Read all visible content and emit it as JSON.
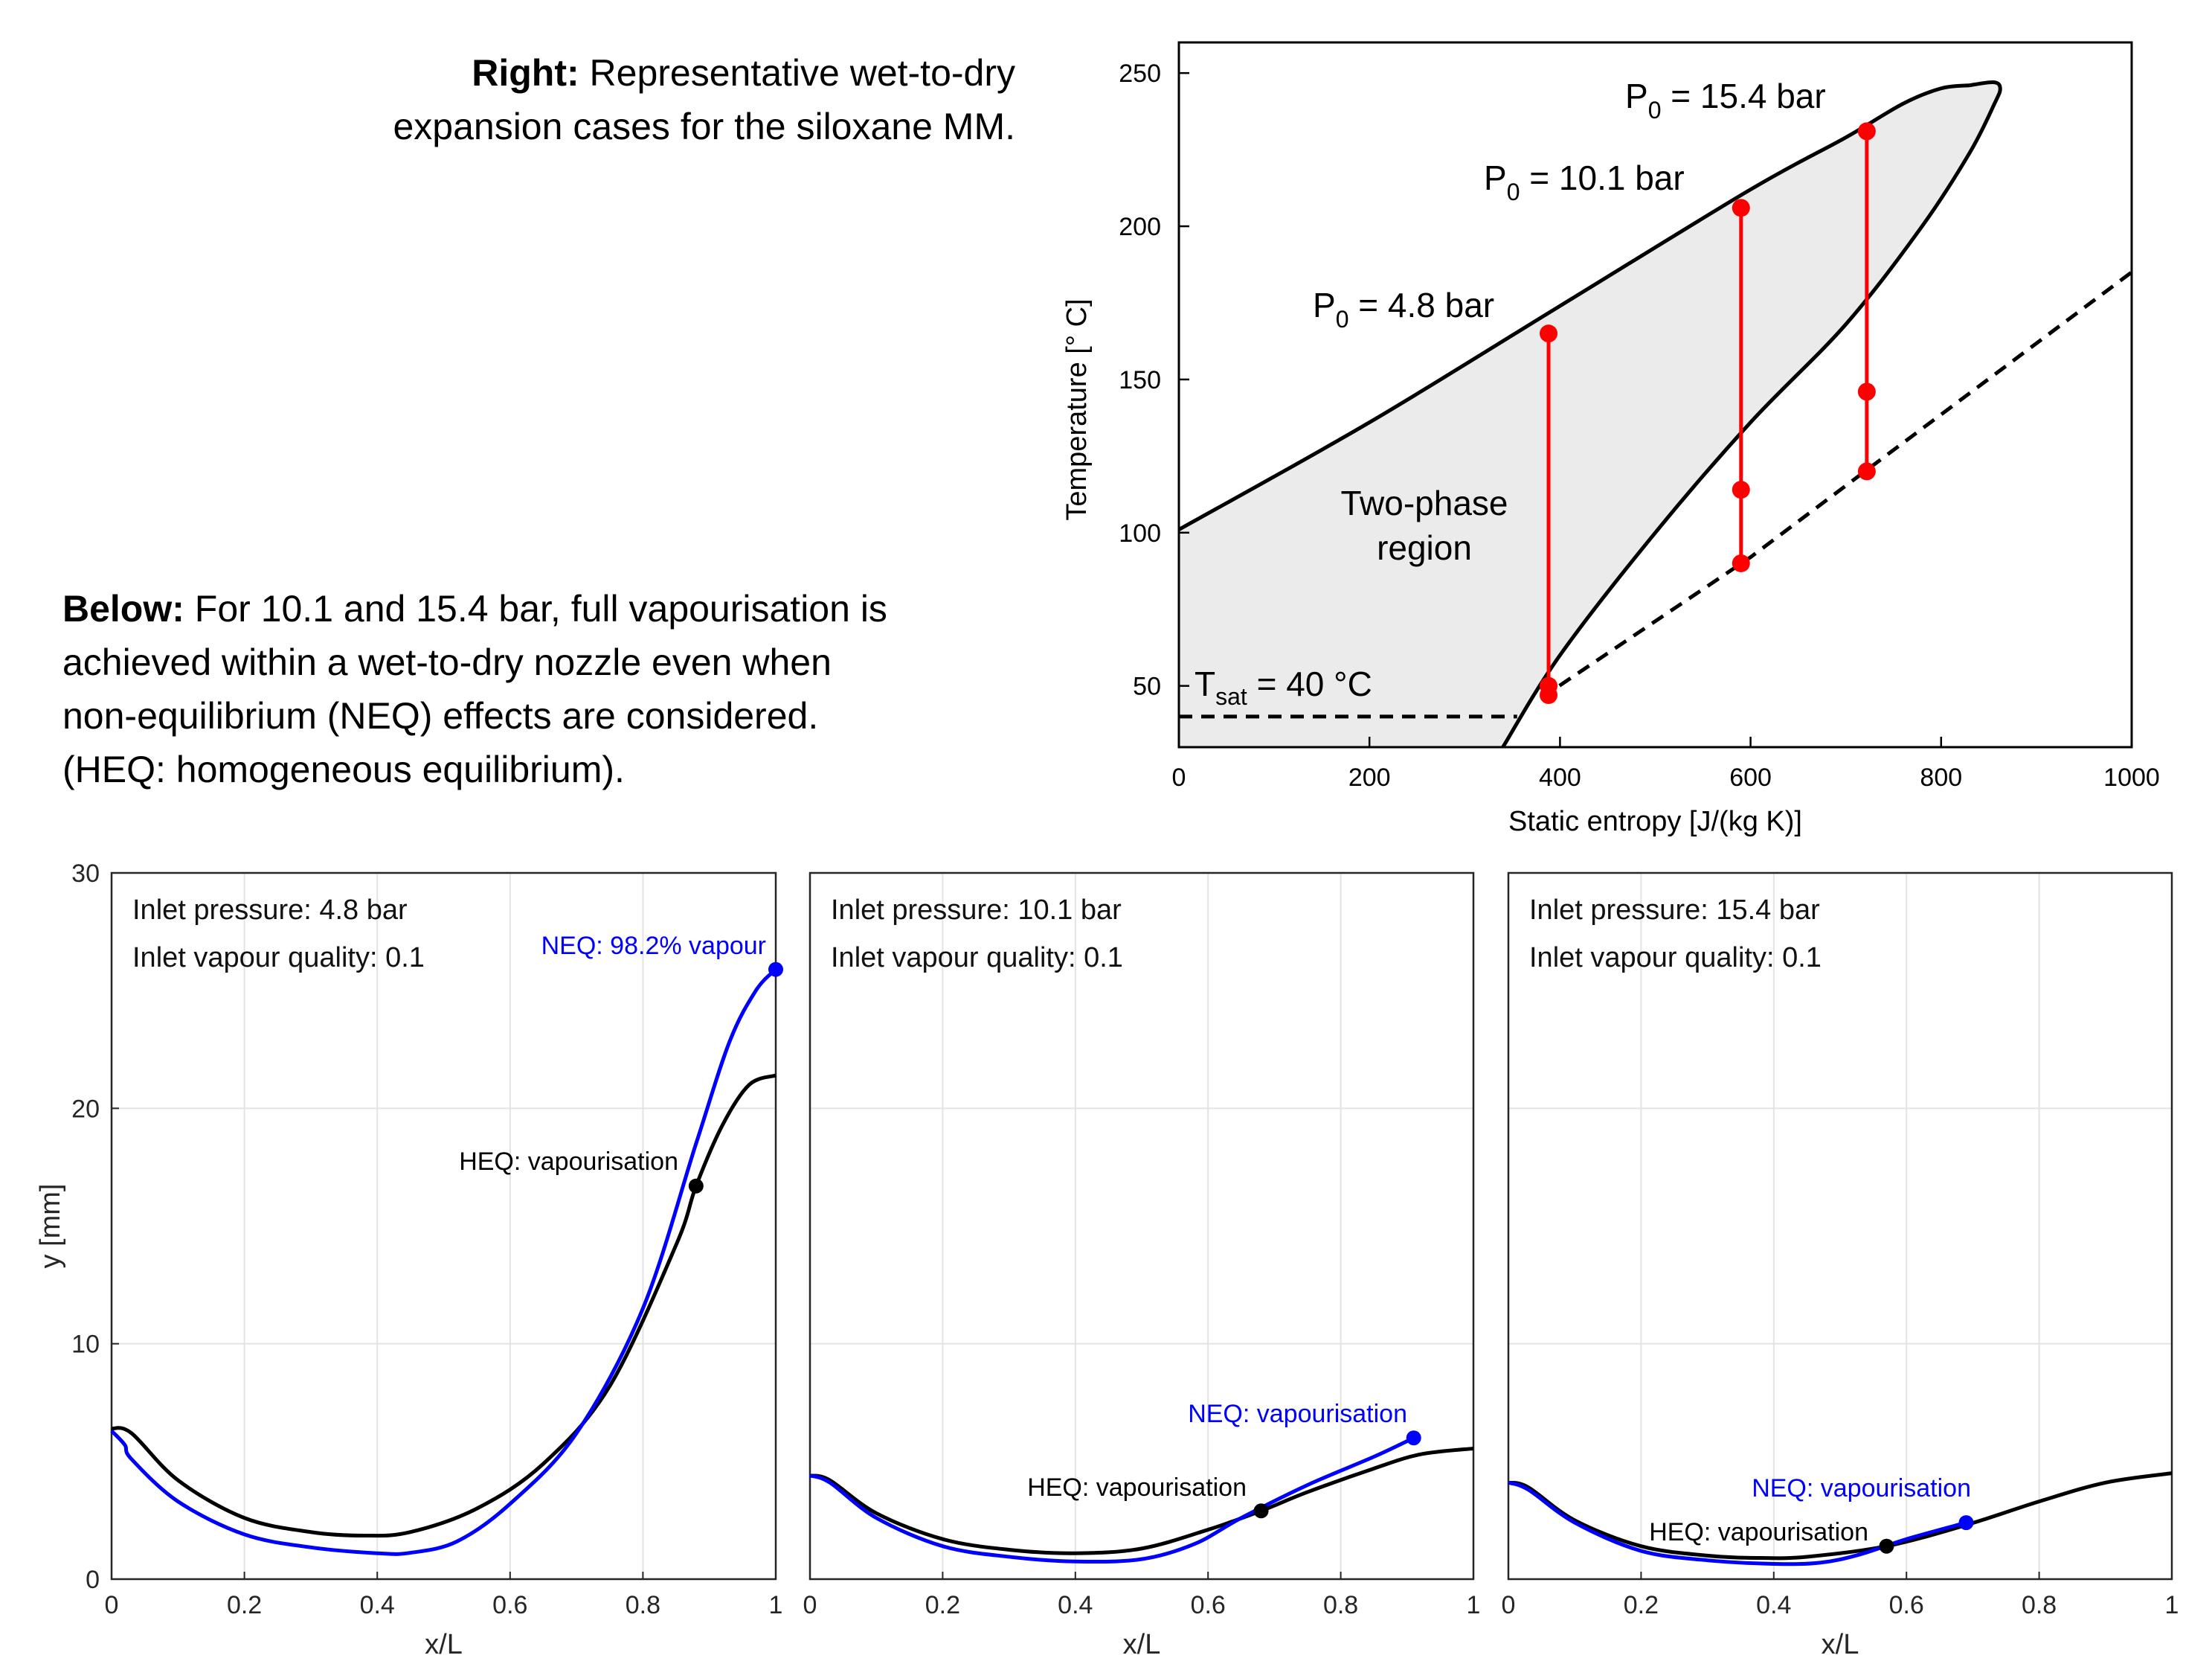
{
  "captions": {
    "right_bold": "Right:",
    "right_line1": " Representative wet-to-dry",
    "right_line2": "expansion cases for the siloxane MM.",
    "below_bold": "Below:",
    "below_line1": " For 10.1 and 15.4 bar, full vapourisation is",
    "below_line2": "achieved within a wet-to-dry nozzle even when",
    "below_line3": "non-equilibrium (NEQ) effects are considered.",
    "below_line4": "(HEQ: homogeneous equilibrium)."
  },
  "colors": {
    "red": "#ff0000",
    "blue": "#0000ff",
    "black": "#000000",
    "dome_fill": "#ebebeb",
    "grid": "#e3e3e3"
  },
  "chart_data": [
    {
      "id": "ts-diagram",
      "type": "line",
      "xlabel": "Static entropy [J/(kg K)]",
      "ylabel": "Temperature [° C]",
      "xlim": [
        0,
        1000
      ],
      "ylim": [
        30,
        260
      ],
      "xticks": [
        0,
        200,
        400,
        600,
        800,
        1000
      ],
      "yticks": [
        50,
        100,
        150,
        200,
        250
      ],
      "grid": false,
      "region_label": [
        "Two-phase",
        "region"
      ],
      "saturation_dome": {
        "liquid_line": [
          [
            0,
            101
          ],
          [
            200,
            136
          ],
          [
            400,
            174
          ],
          [
            600,
            212
          ],
          [
            700,
            229
          ],
          [
            760,
            240
          ],
          [
            800,
            245
          ],
          [
            830,
            246
          ]
        ],
        "vapour_line": [
          [
            340,
            30
          ],
          [
            400,
            60
          ],
          [
            500,
            100
          ],
          [
            600,
            136
          ],
          [
            700,
            168
          ],
          [
            780,
            200
          ],
          [
            830,
            224
          ],
          [
            856,
            240
          ],
          [
            862,
            245
          ],
          [
            855,
            247
          ],
          [
            830,
            246
          ]
        ]
      },
      "tsat_line": {
        "label_T": "T",
        "label_sub": "sat",
        "label_rest": " = 40 °C",
        "points": [
          [
            0,
            40
          ],
          [
            355,
            40
          ]
        ]
      },
      "dashed_line": {
        "points": [
          [
            380,
            46
          ],
          [
            600,
            92
          ],
          [
            720,
            120
          ],
          [
            1000,
            185
          ]
        ]
      },
      "cases": [
        {
          "label_P": "P",
          "label_sub": "0",
          "label_rest": " = 4.8 bar",
          "s": 388,
          "points": [
            165,
            50,
            47
          ]
        },
        {
          "label_P": "P",
          "label_sub": "0",
          "label_rest": " = 10.1 bar",
          "s": 590,
          "points": [
            206,
            114,
            90
          ]
        },
        {
          "label_P": "P",
          "label_sub": "0",
          "label_rest": " = 15.4 bar",
          "s": 722,
          "points": [
            231,
            146,
            120
          ]
        }
      ]
    },
    {
      "id": "nozzle-4.8",
      "type": "line",
      "xlabel": "x/L",
      "ylabel": "y [mm]",
      "xlim": [
        0,
        1
      ],
      "ylim": [
        0,
        30
      ],
      "xticks": [
        "0",
        "0.2",
        "0.4",
        "0.6",
        "0.8",
        "1"
      ],
      "yticks": [
        "0",
        "10",
        "20",
        "30"
      ],
      "grid": true,
      "annotation_line1": "Inlet pressure: 4.8 bar",
      "annotation_line2": "Inlet vapour quality: 0.1",
      "series": [
        {
          "name": "HEQ",
          "color": "#000000",
          "points": [
            [
              0,
              6.4
            ],
            [
              0.03,
              6.2
            ],
            [
              0.1,
              4.2
            ],
            [
              0.2,
              2.6
            ],
            [
              0.3,
              2.0
            ],
            [
              0.38,
              1.85
            ],
            [
              0.45,
              2.0
            ],
            [
              0.55,
              3.0
            ],
            [
              0.65,
              4.9
            ],
            [
              0.75,
              8.2
            ],
            [
              0.85,
              14.2
            ],
            [
              0.88,
              16.7
            ],
            [
              0.92,
              19.3
            ],
            [
              0.96,
              21.0
            ],
            [
              1.0,
              21.4
            ]
          ]
        },
        {
          "name": "NEQ",
          "color": "#0000ff",
          "points": [
            [
              0,
              6.3
            ],
            [
              0.02,
              5.7
            ],
            [
              0.03,
              5.1
            ],
            [
              0.1,
              3.3
            ],
            [
              0.2,
              1.9
            ],
            [
              0.3,
              1.35
            ],
            [
              0.4,
              1.1
            ],
            [
              0.45,
              1.12
            ],
            [
              0.52,
              1.6
            ],
            [
              0.6,
              3.2
            ],
            [
              0.7,
              6.2
            ],
            [
              0.8,
              11.5
            ],
            [
              0.88,
              18.5
            ],
            [
              0.93,
              22.8
            ],
            [
              0.97,
              25.0
            ],
            [
              1.0,
              25.9
            ]
          ]
        }
      ],
      "markers": [
        {
          "series": "HEQ",
          "x": 0.88,
          "y": 16.7,
          "color": "#000000",
          "label": "HEQ: vapourisation"
        },
        {
          "series": "NEQ",
          "x": 1.0,
          "y": 25.9,
          "color": "#0000ff",
          "label": "NEQ: 98.2% vapour"
        }
      ]
    },
    {
      "id": "nozzle-10.1",
      "type": "line",
      "xlabel": "x/L",
      "xlim": [
        0,
        1
      ],
      "ylim": [
        0,
        30
      ],
      "xticks": [
        "0",
        "0.2",
        "0.4",
        "0.6",
        "0.8",
        "1"
      ],
      "grid": true,
      "annotation_line1": "Inlet pressure: 10.1 bar",
      "annotation_line2": "Inlet vapour quality: 0.1",
      "series": [
        {
          "name": "HEQ",
          "color": "#000000",
          "points": [
            [
              0,
              4.4
            ],
            [
              0.03,
              4.2
            ],
            [
              0.1,
              2.8
            ],
            [
              0.2,
              1.7
            ],
            [
              0.3,
              1.25
            ],
            [
              0.4,
              1.1
            ],
            [
              0.5,
              1.3
            ],
            [
              0.6,
              2.1
            ],
            [
              0.68,
              2.9
            ],
            [
              0.75,
              3.7
            ],
            [
              0.85,
              4.7
            ],
            [
              0.92,
              5.3
            ],
            [
              1.0,
              5.55
            ]
          ]
        },
        {
          "name": "NEQ",
          "color": "#0000ff",
          "points": [
            [
              0,
              4.4
            ],
            [
              0.03,
              4.1
            ],
            [
              0.1,
              2.6
            ],
            [
              0.2,
              1.4
            ],
            [
              0.3,
              0.95
            ],
            [
              0.4,
              0.75
            ],
            [
              0.5,
              0.85
            ],
            [
              0.58,
              1.5
            ],
            [
              0.65,
              2.6
            ],
            [
              0.75,
              4.0
            ],
            [
              0.85,
              5.2
            ],
            [
              0.91,
              6.0
            ]
          ]
        }
      ],
      "markers": [
        {
          "series": "HEQ",
          "x": 0.68,
          "y": 2.9,
          "color": "#000000",
          "label": "HEQ: vapourisation"
        },
        {
          "series": "NEQ",
          "x": 0.91,
          "y": 6.0,
          "color": "#0000ff",
          "label": "NEQ: vapourisation"
        }
      ]
    },
    {
      "id": "nozzle-15.4",
      "type": "line",
      "xlabel": "x/L",
      "xlim": [
        0,
        1
      ],
      "ylim": [
        0,
        30
      ],
      "xticks": [
        "0",
        "0.2",
        "0.4",
        "0.6",
        "0.8",
        "1"
      ],
      "grid": true,
      "annotation_line1": "Inlet pressure: 15.4 bar",
      "annotation_line2": "Inlet vapour quality: 0.1",
      "series": [
        {
          "name": "HEQ",
          "color": "#000000",
          "points": [
            [
              0,
              4.1
            ],
            [
              0.03,
              3.9
            ],
            [
              0.1,
              2.5
            ],
            [
              0.2,
              1.4
            ],
            [
              0.3,
              1.0
            ],
            [
              0.38,
              0.9
            ],
            [
              0.45,
              0.95
            ],
            [
              0.57,
              1.4
            ],
            [
              0.69,
              2.3
            ],
            [
              0.8,
              3.3
            ],
            [
              0.9,
              4.1
            ],
            [
              1.0,
              4.5
            ]
          ]
        },
        {
          "name": "NEQ",
          "color": "#0000ff",
          "points": [
            [
              0,
              4.1
            ],
            [
              0.03,
              3.8
            ],
            [
              0.1,
              2.4
            ],
            [
              0.2,
              1.2
            ],
            [
              0.3,
              0.8
            ],
            [
              0.4,
              0.65
            ],
            [
              0.47,
              0.7
            ],
            [
              0.53,
              1.05
            ],
            [
              0.6,
              1.7
            ],
            [
              0.69,
              2.4
            ]
          ]
        }
      ],
      "markers": [
        {
          "series": "HEQ",
          "x": 0.57,
          "y": 1.4,
          "color": "#000000",
          "label": "HEQ: vapourisation"
        },
        {
          "series": "NEQ",
          "x": 0.69,
          "y": 2.4,
          "color": "#0000ff",
          "label": "NEQ: vapourisation"
        }
      ]
    }
  ]
}
